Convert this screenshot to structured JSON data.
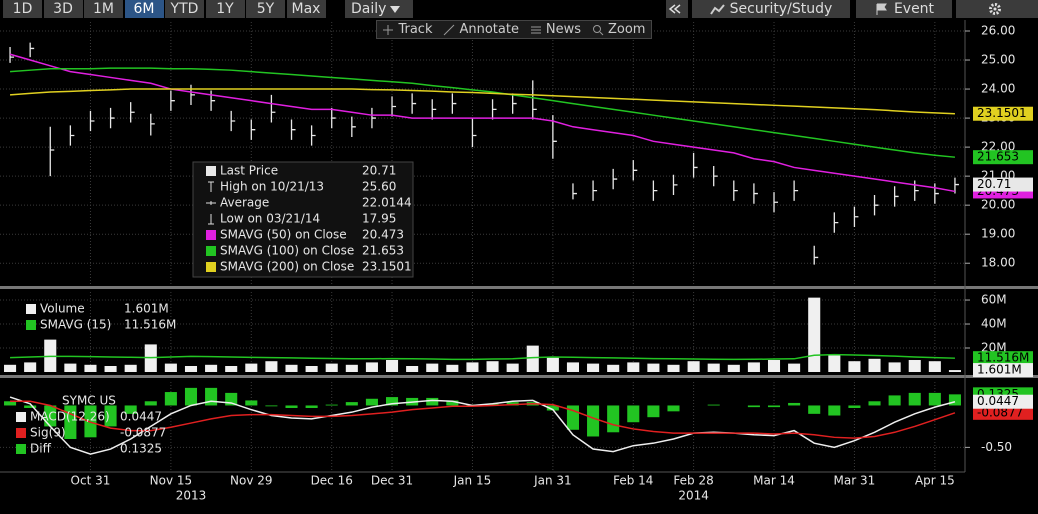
{
  "toolbar": {
    "ranges": [
      "1D",
      "3D",
      "1M",
      "6M",
      "YTD",
      "1Y",
      "5Y",
      "Max"
    ],
    "frequency": "Daily",
    "actions": [
      "Security/Study",
      "Event"
    ]
  },
  "tools": [
    "Track",
    "Annotate",
    "News",
    "Zoom"
  ],
  "chart_data": {
    "type": "ohlc",
    "categories": [
      null,
      null,
      null,
      null,
      "Oct 31",
      null,
      null,
      null,
      "Nov 15",
      null,
      null,
      null,
      "Nov 29",
      null,
      null,
      null,
      "Dec 16",
      null,
      null,
      "Dec 31",
      null,
      null,
      null,
      "Jan 15",
      null,
      null,
      null,
      "Jan 31",
      null,
      null,
      null,
      "Feb 14",
      null,
      null,
      "Feb 28",
      null,
      null,
      null,
      "Mar 14",
      null,
      null,
      null,
      "Mar 31",
      null,
      null,
      null,
      "Apr 15",
      null
    ],
    "years": [
      null,
      null,
      null,
      null,
      null,
      null,
      null,
      null,
      null,
      "2013",
      null,
      null,
      null,
      null,
      null,
      null,
      null,
      null,
      null,
      null,
      null,
      null,
      null,
      null,
      null,
      null,
      null,
      null,
      null,
      null,
      null,
      null,
      null,
      null,
      "2014",
      null,
      null,
      null,
      null,
      null,
      null,
      null,
      null,
      null,
      null,
      null,
      null,
      null
    ],
    "panels": [
      {
        "ylim": [
          17.25,
          26.31
        ],
        "grid": true,
        "yticks": [
          {
            "value": 18,
            "label": "18.00"
          },
          {
            "value": 19,
            "label": "19.00"
          },
          {
            "value": 20,
            "label": "20.00"
          },
          {
            "value": 21,
            "label": "21.00"
          },
          {
            "value": 22,
            "label": "22.00"
          },
          {
            "value": 23,
            "label": "23.00"
          },
          {
            "value": 24,
            "label": "24.00"
          },
          {
            "value": 25,
            "label": "25.00"
          },
          {
            "value": 26,
            "label": "26.00"
          }
        ],
        "series": [
          {
            "name": "Last Price",
            "type": "ohlc",
            "color": "#e8e8e8",
            "high": [
              25.45,
              25.6,
              22.7,
              22.75,
              23.25,
              23.35,
              23.55,
              23.15,
              23.95,
              24.15,
              23.95,
              23.25,
              22.95,
              23.8,
              22.95,
              22.75,
              23.35,
              23.05,
              23.35,
              23.75,
              23.85,
              23.65,
              23.85,
              23.0,
              23.65,
              23.85,
              24.3,
              23.1,
              20.75,
              20.85,
              21.25,
              21.55,
              20.85,
              21.05,
              21.8,
              21.35,
              20.85,
              20.75,
              20.45,
              20.85,
              18.6,
              19.75,
              19.95,
              20.35,
              20.65,
              20.85,
              20.75,
              20.95
            ],
            "low": [
              24.9,
              25.1,
              21.0,
              22.05,
              22.55,
              22.65,
              22.85,
              22.4,
              23.25,
              23.45,
              23.25,
              22.55,
              22.25,
              22.85,
              22.25,
              22.05,
              22.65,
              22.35,
              22.65,
              23.05,
              23.15,
              22.95,
              23.15,
              22.0,
              22.95,
              23.15,
              22.95,
              21.6,
              20.2,
              20.15,
              20.55,
              20.85,
              20.15,
              20.35,
              20.95,
              20.65,
              20.15,
              20.05,
              19.75,
              20.15,
              17.95,
              19.05,
              19.25,
              19.65,
              19.95,
              20.15,
              20.05,
              20.4
            ],
            "close": [
              25.1,
              25.4,
              21.9,
              22.4,
              22.9,
              23.0,
              23.2,
              22.8,
              23.6,
              23.8,
              23.6,
              22.9,
              22.6,
              23.2,
              22.6,
              22.4,
              23.0,
              22.7,
              23.0,
              23.4,
              23.5,
              23.3,
              23.5,
              22.4,
              23.3,
              23.5,
              23.3,
              22.2,
              20.4,
              20.5,
              20.9,
              21.2,
              20.5,
              20.7,
              21.3,
              21.0,
              20.5,
              20.4,
              20.1,
              20.5,
              18.2,
              19.4,
              19.6,
              20.0,
              20.3,
              20.5,
              20.4,
              20.71
            ]
          },
          {
            "name": "SMAVG (50) on Close",
            "type": "line",
            "color": "#e020e0",
            "values": [
              25.2,
              25,
              24.8,
              24.6,
              24.5,
              24.4,
              24.3,
              24.2,
              24,
              23.9,
              23.8,
              23.7,
              23.6,
              23.5,
              23.4,
              23.3,
              23.3,
              23.2,
              23.1,
              23.1,
              23,
              23,
              23,
              23,
              23,
              23,
              23,
              22.9,
              22.7,
              22.6,
              22.5,
              22.4,
              22.2,
              22.1,
              22,
              21.9,
              21.8,
              21.6,
              21.5,
              21.3,
              21.2,
              21.1,
              21,
              20.9,
              20.8,
              20.7,
              20.6,
              20.473
            ]
          },
          {
            "name": "SMAVG (100) on Close",
            "type": "line",
            "color": "#22c422",
            "values": [
              24.6,
              24.65,
              24.7,
              24.7,
              24.7,
              24.72,
              24.72,
              24.72,
              24.7,
              24.7,
              24.68,
              24.65,
              24.6,
              24.55,
              24.5,
              24.45,
              24.4,
              24.35,
              24.3,
              24.25,
              24.2,
              24.12,
              24.05,
              23.97,
              23.9,
              23.8,
              23.7,
              23.6,
              23.5,
              23.4,
              23.3,
              23.2,
              23.1,
              23.0,
              22.9,
              22.8,
              22.7,
              22.6,
              22.5,
              22.4,
              22.3,
              22.2,
              22.1,
              22.0,
              21.9,
              21.8,
              21.72,
              21.653
            ]
          },
          {
            "name": "SMAVG (200) on Close",
            "type": "line",
            "color": "#e0d020",
            "values": [
              23.8,
              23.85,
              23.9,
              23.92,
              23.95,
              23.97,
              24,
              24,
              24,
              24,
              24,
              24,
              24,
              24,
              24,
              24,
              24,
              24,
              23.98,
              23.97,
              23.95,
              23.93,
              23.9,
              23.88,
              23.85,
              23.82,
              23.8,
              23.77,
              23.74,
              23.71,
              23.68,
              23.65,
              23.62,
              23.59,
              23.56,
              23.53,
              23.5,
              23.47,
              23.44,
              23.41,
              23.38,
              23.35,
              23.32,
              23.29,
              23.25,
              23.21,
              23.18,
              23.1501
            ]
          }
        ],
        "stats": [
          {
            "label": "High on 10/21/13",
            "value": 25.6,
            "value_label": "25.60"
          },
          {
            "label": "Average",
            "value": 22.0144
          },
          {
            "label": "Low on 03/21/14",
            "value": 17.95
          }
        ]
      },
      {
        "ylim": [
          0,
          66.7
        ],
        "grid": true,
        "yticks": [
          {
            "value": 20,
            "label": "20M"
          },
          {
            "value": 40,
            "label": "40M"
          },
          {
            "value": 60,
            "label": "60M"
          }
        ],
        "series": [
          {
            "name": "Volume",
            "type": "bar",
            "color": "#f0f0f0",
            "last_label": "1.601M",
            "values": [
              6,
              8,
              27,
              7,
              6,
              5,
              6,
              23,
              7,
              5,
              6,
              5,
              7,
              9,
              6,
              5,
              7,
              6,
              8,
              10,
              5,
              7,
              6,
              8,
              9,
              7,
              22,
              12,
              8,
              7,
              6,
              8,
              7,
              6,
              9,
              7,
              6,
              8,
              10,
              7,
              62,
              14,
              9,
              11,
              8,
              10,
              9,
              1.601
            ]
          },
          {
            "name": "SMAVG (15)",
            "type": "line",
            "color": "#22c422",
            "last_label": "11.516M",
            "values": [
              12,
              12.5,
              13,
              13,
              12.8,
              12.5,
              12.3,
              12,
              12.5,
              13,
              12.8,
              12.5,
              12.2,
              12,
              11.8,
              11.5,
              11.3,
              11,
              11,
              11.2,
              11,
              10.8,
              10.5,
              10.5,
              10.8,
              11,
              12,
              12.5,
              12.3,
              12,
              11.8,
              11.5,
              11.2,
              11,
              10.8,
              10.6,
              10.5,
              10.6,
              10.8,
              11,
              14,
              14.5,
              14.2,
              13.8,
              13.2,
              12.5,
              12,
              11.516
            ]
          }
        ]
      },
      {
        "title": "SYMC US",
        "ylim": [
          -0.77,
          0.28
        ],
        "grid": true,
        "yticks": [
          {
            "value": -0.5,
            "label": "-0.50"
          }
        ],
        "series": [
          {
            "name": "MACD(12,26)",
            "type": "line",
            "color": "#eeeeee",
            "values": [
              0.1,
              0.02,
              -0.25,
              -0.5,
              -0.58,
              -0.52,
              -0.4,
              -0.25,
              -0.1,
              0,
              0.05,
              0.03,
              -0.05,
              -0.12,
              -0.15,
              -0.16,
              -0.12,
              -0.08,
              -0.02,
              0.02,
              0.04,
              0.06,
              0.05,
              0,
              0.02,
              0.05,
              0.06,
              -0.05,
              -0.35,
              -0.52,
              -0.55,
              -0.48,
              -0.45,
              -0.4,
              -0.33,
              -0.32,
              -0.33,
              -0.35,
              -0.36,
              -0.3,
              -0.45,
              -0.5,
              -0.42,
              -0.32,
              -0.2,
              -0.1,
              -0.02,
              0.0447
            ]
          },
          {
            "name": "Sig(9)",
            "type": "line",
            "color": "#e02020",
            "values": [
              0.05,
              0.05,
              0,
              -0.1,
              -0.2,
              -0.27,
              -0.3,
              -0.3,
              -0.26,
              -0.21,
              -0.16,
              -0.12,
              -0.11,
              -0.11,
              -0.12,
              -0.13,
              -0.13,
              -0.12,
              -0.1,
              -0.08,
              -0.05,
              -0.03,
              -0.01,
              -0.01,
              0,
              0.01,
              0.02,
              0.01,
              -0.06,
              -0.15,
              -0.23,
              -0.28,
              -0.31,
              -0.33,
              -0.33,
              -0.33,
              -0.33,
              -0.33,
              -0.34,
              -0.33,
              -0.35,
              -0.38,
              -0.39,
              -0.37,
              -0.32,
              -0.25,
              -0.17,
              -0.0877
            ]
          },
          {
            "name": "Diff",
            "type": "bar",
            "color": "#22c422",
            "values": [
              0.05,
              -0.03,
              -0.25,
              -0.4,
              -0.38,
              -0.25,
              -0.1,
              0.05,
              0.16,
              0.21,
              0.21,
              0.15,
              0.06,
              -0.01,
              -0.03,
              -0.03,
              0.01,
              0.04,
              0.08,
              0.1,
              0.09,
              0.09,
              0.06,
              0.01,
              0.02,
              0.04,
              0.04,
              -0.06,
              -0.29,
              -0.37,
              -0.32,
              -0.2,
              -0.14,
              -0.07,
              0,
              0.01,
              0,
              -0.02,
              -0.02,
              0.03,
              -0.1,
              -0.12,
              -0.03,
              0.05,
              0.12,
              0.15,
              0.15,
              0.1325
            ]
          }
        ]
      }
    ]
  }
}
